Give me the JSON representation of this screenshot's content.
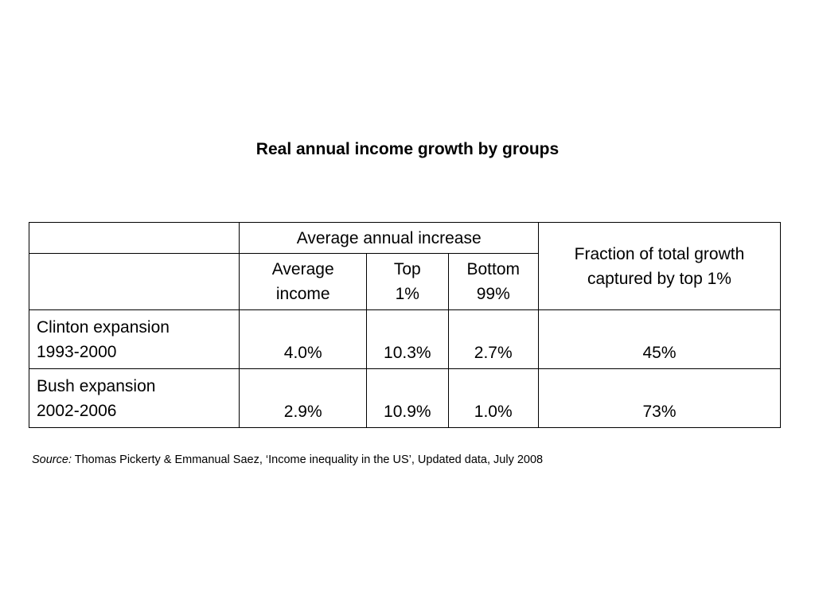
{
  "title": "Real annual income growth by groups",
  "table": {
    "group_header": "Average annual increase",
    "fraction_header_line1": "Fraction of total growth",
    "fraction_header_line2": "captured by top 1%",
    "columns": {
      "average_line1": "Average",
      "average_line2": "income",
      "top_line1": "Top",
      "top_line2": "1%",
      "bottom_line1": "Bottom",
      "bottom_line2": "99%"
    },
    "rows": [
      {
        "label_line1": "Clinton expansion",
        "label_line2": "1993-2000",
        "average_income": "4.0%",
        "top_1": "10.3%",
        "bottom_99": "2.7%",
        "fraction_top_1": "45%"
      },
      {
        "label_line1": "Bush expansion",
        "label_line2": "2002-2006",
        "average_income": "2.9%",
        "top_1": "10.9%",
        "bottom_99": "1.0%",
        "fraction_top_1": "73%"
      }
    ]
  },
  "source": {
    "label": "Source:",
    "text": " Thomas Pickerty & Emmanual Saez, ‘Income inequality in the US’, Updated data, July 2008"
  }
}
